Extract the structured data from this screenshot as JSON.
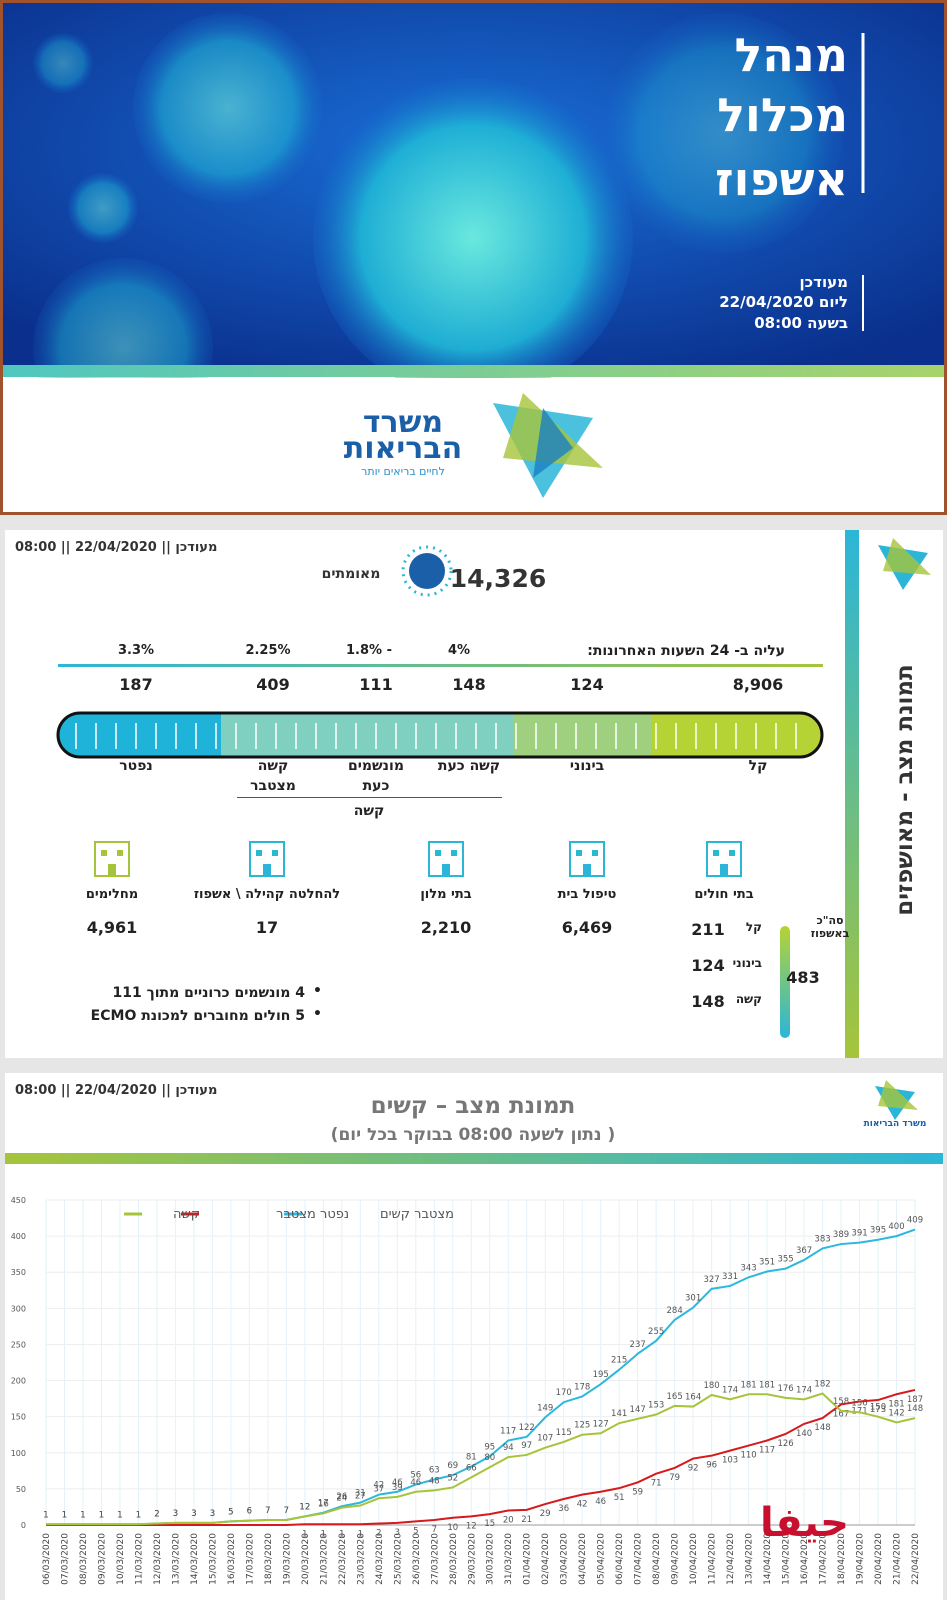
{
  "banner": {
    "title_lines": [
      "מנהל",
      "מכלול",
      "אשפוז"
    ],
    "updated_lines": [
      "מעודכן",
      "ליום 22/04/2020",
      "בשעה 08:00"
    ],
    "logo": {
      "line1": "משרד",
      "line2": "הבריאות",
      "tagline": "לחיים בריאים יותר"
    }
  },
  "status": {
    "updated": "מעודכן || 22/04/2020 || 08:00",
    "side_title": "תמונת מצב - מאושפזים",
    "confirmed": {
      "value": "14,326",
      "label": "מאומתים"
    },
    "increase_label": "עליה ב- 24 השעות האחרונות:",
    "increases": [
      "4%",
      "- 1.8%",
      "2.25%",
      "3.3%"
    ],
    "segments": [
      {
        "value": "8,906",
        "label": "קל"
      },
      {
        "value": "124",
        "label": "בינוני"
      },
      {
        "value": "148",
        "label": "קשה כעת"
      },
      {
        "value": "111",
        "label": "מונשמים כעת"
      },
      {
        "value": "409",
        "label": "קשה מצטבר"
      },
      {
        "value": "187",
        "label": "נפטר"
      }
    ],
    "group_label": "קשה",
    "locations": [
      {
        "label": "בתי חולים"
      },
      {
        "label": "טיפול בית",
        "value": "6,469"
      },
      {
        "label": "בתי מלון",
        "value": "2,210"
      },
      {
        "label": "להחלטה קהילה \\ אשפוז",
        "value": "17"
      },
      {
        "label": "מחלימים",
        "value": "4,961"
      }
    ],
    "hospital": {
      "total_label": "סה\"כ באשפוז",
      "total": "483",
      "rows": [
        {
          "label": "קל",
          "value": "211"
        },
        {
          "label": "בינוני",
          "value": "124"
        },
        {
          "label": "קשה",
          "value": "148"
        }
      ]
    },
    "notes": [
      "4 מונשמים כרוניים מתוך 111",
      "5 חולים מחוברים למכונת ECMO"
    ]
  },
  "chart_panel": {
    "updated": "מעודכן || 22/04/2020 || 08:00",
    "title": "תמונת מצב – קשים",
    "subtitle": "( נתון לשעה 08:00 בבוקר בכל יום)",
    "logo": "משרד הבריאות"
  },
  "chart_data": {
    "type": "line",
    "x": [
      "06/03/2020",
      "07/03/2020",
      "08/03/2020",
      "09/03/2020",
      "10/03/2020",
      "11/03/2020",
      "12/03/2020",
      "13/03/2020",
      "14/03/2020",
      "15/03/2020",
      "16/03/2020",
      "17/03/2020",
      "18/03/2020",
      "19/03/2020",
      "20/03/2020",
      "21/03/2020",
      "22/03/2020",
      "23/03/2020",
      "24/03/2020",
      "25/03/2020",
      "26/03/2020",
      "27/03/2020",
      "28/03/2020",
      "29/03/2020",
      "30/03/2020",
      "31/03/2020",
      "01/04/2020",
      "02/04/2020",
      "03/04/2020",
      "04/04/2020",
      "05/04/2020",
      "06/04/2020",
      "07/04/2020",
      "08/04/2020",
      "09/04/2020",
      "10/04/2020",
      "11/04/2020",
      "12/04/2020",
      "13/04/2020",
      "14/04/2020",
      "15/04/2020",
      "16/04/2020",
      "17/04/2020",
      "18/04/2020",
      "19/04/2020",
      "20/04/2020",
      "21/04/2020",
      "22/04/2020"
    ],
    "series": [
      {
        "name": "מצטבר קשים",
        "color": "#2cb8dd",
        "values": [
          1,
          1,
          1,
          1,
          1,
          1,
          2,
          3,
          3,
          3,
          5,
          6,
          7,
          7,
          12,
          17,
          26,
          31,
          42,
          46,
          56,
          63,
          69,
          81,
          95,
          117,
          122,
          149,
          170,
          178,
          195,
          215,
          237,
          255,
          284,
          301,
          327,
          331,
          343,
          351,
          355,
          367,
          383,
          389,
          391,
          395,
          400,
          409
        ]
      },
      {
        "name": "נפטר מצטבר",
        "color": "#d7191c",
        "values": [
          0,
          0,
          0,
          0,
          0,
          0,
          0,
          0,
          0,
          0,
          0,
          0,
          0,
          0,
          1,
          1,
          1,
          1,
          2,
          3,
          5,
          7,
          10,
          12,
          15,
          20,
          21,
          29,
          36,
          42,
          46,
          51,
          59,
          71,
          79,
          92,
          96,
          103,
          110,
          117,
          126,
          140,
          148,
          167,
          171,
          173,
          181,
          187
        ]
      },
      {
        "name": "קשה",
        "color": "#a6c43a",
        "values": [
          1,
          1,
          1,
          1,
          1,
          1,
          2,
          3,
          3,
          3,
          5,
          6,
          7,
          7,
          12,
          16,
          24,
          27,
          37,
          39,
          46,
          48,
          52,
          66,
          80,
          94,
          97,
          107,
          115,
          125,
          127,
          141,
          147,
          153,
          165,
          164,
          180,
          174,
          181,
          181,
          176,
          174,
          182,
          158,
          156,
          150,
          142,
          148
        ]
      }
    ],
    "ylim": [
      0,
      450
    ],
    "yticks": [
      0,
      50,
      100,
      150,
      200,
      250,
      300,
      350,
      400,
      450
    ],
    "grid": true,
    "legend": "top-left"
  },
  "watermark": "حيفا"
}
